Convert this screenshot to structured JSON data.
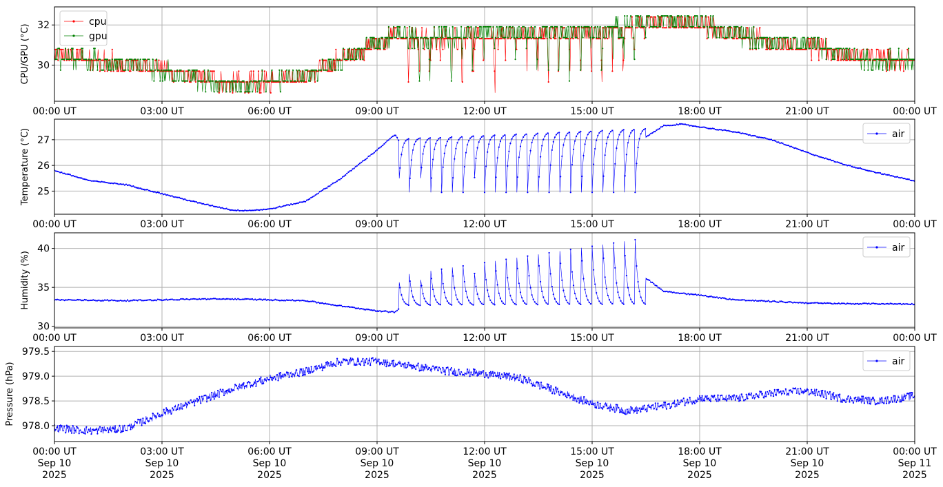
{
  "colors": {
    "cpu": "#ff0000",
    "gpu": "#008000",
    "air": "#0000ff",
    "grid": "#b0b0b0"
  },
  "x_axis": {
    "hours": [
      0,
      3,
      6,
      9,
      12,
      15,
      18,
      21,
      24
    ],
    "time_labels": [
      "00:00 UT",
      "03:00 UT",
      "06:00 UT",
      "09:00 UT",
      "12:00 UT",
      "15:00 UT",
      "18:00 UT",
      "21:00 UT",
      "00:00 UT"
    ],
    "date_labels": [
      "Sep 10",
      "Sep 10",
      "Sep 10",
      "Sep 10",
      "Sep 10",
      "Sep 10",
      "Sep 10",
      "Sep 10",
      "Sep 11"
    ],
    "year_labels": [
      "2025",
      "2025",
      "2025",
      "2025",
      "2025",
      "2025",
      "2025",
      "2025",
      "2025"
    ]
  },
  "chart_data": [
    {
      "type": "line",
      "ylabel": "CPU/GPU (°C)",
      "ylim": [
        28.2,
        32.9
      ],
      "yticks": [
        30,
        32
      ],
      "ytick_labels": [
        "30",
        "32"
      ],
      "grid": true,
      "legend_position": "top-left",
      "x_unit": "hours since 00:00 UT Sep 10 2025",
      "series": [
        {
          "name": "cpu",
          "x": [
            0,
            1,
            2,
            3,
            4,
            5,
            6,
            7,
            8,
            9,
            9.5,
            10,
            11,
            12,
            13,
            14,
            15,
            16,
            16.5,
            17,
            18,
            19,
            20,
            21,
            22,
            23,
            24
          ],
          "y": [
            30.5,
            30.3,
            30.0,
            29.8,
            29.4,
            29.1,
            29.2,
            29.4,
            30.3,
            31.1,
            31.5,
            31.2,
            31.3,
            31.4,
            31.5,
            31.6,
            31.6,
            31.7,
            32.1,
            32.1,
            32.0,
            31.6,
            31.2,
            30.9,
            30.6,
            30.3,
            30.2
          ]
        },
        {
          "name": "gpu",
          "x": [
            0,
            1,
            2,
            3,
            4,
            5,
            6,
            7,
            8,
            9,
            9.5,
            10,
            11,
            12,
            13,
            14,
            15,
            16,
            16.5,
            17,
            18,
            19,
            20,
            21,
            22,
            23,
            24
          ],
          "y": [
            30.4,
            30.2,
            30.0,
            29.7,
            29.2,
            29.0,
            29.1,
            29.4,
            30.2,
            31.0,
            31.5,
            31.3,
            31.4,
            31.5,
            31.6,
            31.7,
            31.7,
            31.8,
            32.2,
            32.2,
            32.0,
            31.5,
            31.1,
            30.9,
            30.5,
            30.2,
            30.1
          ]
        }
      ]
    },
    {
      "type": "line",
      "ylabel": "Temperature (°C)",
      "ylim": [
        24.1,
        27.8
      ],
      "yticks": [
        25,
        26,
        27
      ],
      "ytick_labels": [
        "25",
        "26",
        "27"
      ],
      "grid": true,
      "legend_position": "top-right",
      "x_unit": "hours since 00:00 UT Sep 10 2025",
      "series": [
        {
          "name": "air",
          "x": [
            0,
            1,
            2,
            3,
            4,
            5,
            5.5,
            6,
            7,
            8,
            9,
            9.5,
            10,
            11,
            12,
            13,
            14,
            15,
            16,
            16.5,
            17,
            17.5,
            18,
            19,
            20,
            21,
            22,
            23,
            24
          ],
          "y": [
            25.8,
            25.4,
            25.25,
            24.9,
            24.55,
            24.25,
            24.25,
            24.3,
            24.6,
            25.5,
            26.6,
            27.2,
            26.1,
            26.2,
            26.2,
            26.3,
            26.3,
            26.3,
            26.3,
            27.1,
            27.55,
            27.6,
            27.5,
            27.3,
            27.0,
            26.5,
            26.05,
            25.7,
            25.4
          ]
        }
      ]
    },
    {
      "type": "line",
      "ylabel": "Humidity (%)",
      "ylim": [
        29.8,
        42.0
      ],
      "yticks": [
        30,
        35,
        40
      ],
      "ytick_labels": [
        "30",
        "35",
        "40"
      ],
      "grid": true,
      "legend_position": "top-right",
      "x_unit": "hours since 00:00 UT Sep 10 2025",
      "series": [
        {
          "name": "air",
          "x": [
            0,
            1,
            2,
            3,
            4,
            5,
            6,
            7,
            8,
            9,
            9.5,
            10,
            11,
            12,
            13,
            14,
            15,
            16,
            16.5,
            17,
            18,
            19,
            20,
            21,
            22,
            23,
            24
          ],
          "y": [
            33.4,
            33.35,
            33.3,
            33.4,
            33.5,
            33.5,
            33.4,
            33.3,
            32.6,
            32.0,
            31.8,
            34.0,
            35.0,
            35.5,
            36.0,
            36.5,
            36.8,
            37.0,
            36.2,
            34.5,
            34.0,
            33.4,
            33.2,
            33.0,
            32.9,
            32.9,
            32.85
          ]
        }
      ]
    },
    {
      "type": "line",
      "ylabel": "Pressure (hPa)",
      "ylim": [
        977.68,
        979.6
      ],
      "yticks": [
        978.0,
        978.5,
        979.0,
        979.5
      ],
      "ytick_labels": [
        "978.0",
        "978.5",
        "979.0",
        "979.5"
      ],
      "grid": true,
      "legend_position": "top-right",
      "x_unit": "hours since 00:00 UT Sep 10 2025",
      "series": [
        {
          "name": "air",
          "x": [
            0,
            1,
            2,
            3,
            4,
            5,
            6,
            7,
            8,
            9,
            10,
            11,
            12,
            13,
            14,
            15,
            16,
            17,
            18,
            19,
            20,
            21,
            22,
            23,
            24
          ],
          "y": [
            977.95,
            977.9,
            977.95,
            978.25,
            978.5,
            978.75,
            978.95,
            979.1,
            979.3,
            979.3,
            979.2,
            979.1,
            979.05,
            978.95,
            978.7,
            978.45,
            978.3,
            978.4,
            978.55,
            978.55,
            978.65,
            978.7,
            978.55,
            978.5,
            978.6
          ]
        }
      ]
    }
  ]
}
